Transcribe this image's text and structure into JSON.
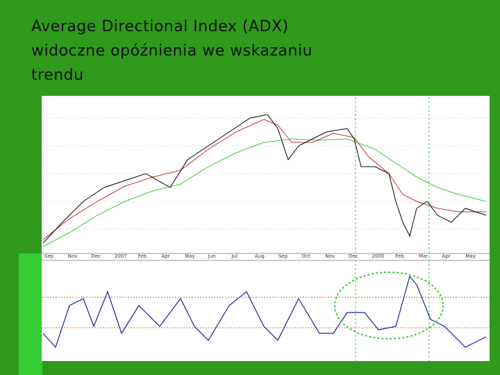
{
  "title": {
    "lines": [
      "Average Directional Index (ADX)",
      "widoczne opóźnienia we wskazaniu",
      "trendu"
    ]
  },
  "chart": {
    "months": [
      "Sep",
      "Nov",
      "Dec",
      "2007",
      "Feb",
      "Apr",
      "May",
      "Jun",
      "Jul",
      "Aug",
      "Sep",
      "Oct",
      "Nov",
      "Dec",
      "2000",
      "Feb",
      "Mar",
      "Apr",
      "May"
    ]
  }
}
